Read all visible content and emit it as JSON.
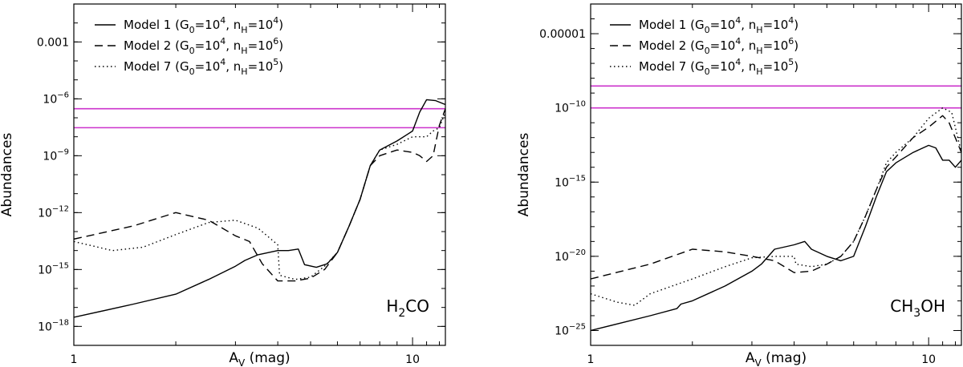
{
  "chart_data": [
    {
      "type": "line",
      "species": "H2CO",
      "label_base": "H",
      "label_sub": "2",
      "label_rest": "CO",
      "xlabel": "A",
      "xlabel_sub": "V",
      "xlabel_rest": " (mag)",
      "ylabel": "Abundances",
      "xscale": "log",
      "yscale": "log",
      "xlim": [
        1,
        12.5
      ],
      "ylim": [
        1e-19,
        0.1
      ],
      "yticks": [
        {
          "value": 0.001,
          "label": "0.001",
          "exp": ""
        },
        {
          "value": 1e-06,
          "label": "10",
          "exp": "−6"
        },
        {
          "value": 1e-09,
          "label": "10",
          "exp": "−9"
        },
        {
          "value": 1e-12,
          "label": "10",
          "exp": "−12"
        },
        {
          "value": 1e-15,
          "label": "10",
          "exp": "−15"
        },
        {
          "value": 1e-18,
          "label": "10",
          "exp": "−18"
        }
      ],
      "xticks": [
        {
          "value": 1,
          "label": "1"
        },
        {
          "value": 10,
          "label": "10"
        }
      ],
      "observed_abundance_lines": [
        3e-07,
        3e-08
      ],
      "observed_line_color": "#cc33cc",
      "series": [
        {
          "name": "Model 1",
          "style": "solid",
          "legend": {
            "model": "Model 1",
            "G0": "4",
            "nH": "4"
          },
          "points": [
            [
              1,
              3e-18
            ],
            [
              1.5,
              1.5e-17
            ],
            [
              2,
              5e-17
            ],
            [
              2.5,
              3e-16
            ],
            [
              3,
              1.5e-15
            ],
            [
              3.2,
              3e-15
            ],
            [
              3.5,
              6e-15
            ],
            [
              4,
              1e-14
            ],
            [
              4.3,
              1e-14
            ],
            [
              4.6,
              1.2e-14
            ],
            [
              4.8,
              1.8e-15
            ],
            [
              5.2,
              1.3e-15
            ],
            [
              5.6,
              2e-15
            ],
            [
              6,
              8e-15
            ],
            [
              6.5,
              2e-13
            ],
            [
              7,
              5e-12
            ],
            [
              7.5,
              3e-10
            ],
            [
              8,
              2e-09
            ],
            [
              9,
              6e-09
            ],
            [
              10,
              2e-08
            ],
            [
              10.5,
              2e-07
            ],
            [
              11,
              9e-07
            ],
            [
              11.7,
              8e-07
            ],
            [
              12.5,
              5e-07
            ]
          ]
        },
        {
          "name": "Model 2",
          "style": "dashed",
          "legend": {
            "model": "Model 2",
            "G0": "4",
            "nH": "6"
          },
          "points": [
            [
              1,
              4e-14
            ],
            [
              1.5,
              2e-13
            ],
            [
              2,
              1e-12
            ],
            [
              2.5,
              4e-13
            ],
            [
              3,
              6e-14
            ],
            [
              3.3,
              3e-14
            ],
            [
              3.6,
              2e-15
            ],
            [
              4,
              2.5e-16
            ],
            [
              4.5,
              2.5e-16
            ],
            [
              5,
              3.5e-16
            ],
            [
              5.5,
              1e-15
            ],
            [
              6,
              8e-15
            ],
            [
              6.5,
              2e-13
            ],
            [
              7,
              5e-12
            ],
            [
              7.5,
              3e-10
            ],
            [
              8,
              1e-09
            ],
            [
              9,
              2e-09
            ],
            [
              10,
              1.5e-09
            ],
            [
              10.5,
              1e-09
            ],
            [
              11,
              5e-10
            ],
            [
              11.5,
              1e-09
            ],
            [
              12,
              4e-08
            ],
            [
              12.5,
              3e-07
            ]
          ]
        },
        {
          "name": "Model 7",
          "style": "dotted",
          "legend": {
            "model": "Model 7",
            "G0": "4",
            "nH": "5"
          },
          "points": [
            [
              1,
              3e-14
            ],
            [
              1.3,
              1e-14
            ],
            [
              1.6,
              1.5e-14
            ],
            [
              2,
              7e-14
            ],
            [
              2.5,
              3e-13
            ],
            [
              3,
              4e-13
            ],
            [
              3.5,
              1.5e-13
            ],
            [
              4,
              2e-14
            ],
            [
              4.05,
              5e-16
            ],
            [
              4.5,
              3e-16
            ],
            [
              5,
              4e-16
            ],
            [
              5.5,
              1.5e-15
            ],
            [
              6,
              8e-15
            ],
            [
              6.5,
              2e-13
            ],
            [
              7,
              5e-12
            ],
            [
              7.5,
              3e-10
            ],
            [
              8,
              2e-09
            ],
            [
              9,
              4e-09
            ],
            [
              10,
              1e-08
            ],
            [
              11,
              1e-08
            ],
            [
              11.5,
              2e-08
            ],
            [
              12,
              3e-08
            ],
            [
              12.5,
              2e-07
            ]
          ]
        }
      ]
    },
    {
      "type": "line",
      "species": "CH3OH",
      "label_base": "CH",
      "label_sub": "3",
      "label_rest": "OH",
      "xlabel": "A",
      "xlabel_sub": "V",
      "xlabel_rest": " (mag)",
      "ylabel": "Abundances",
      "xscale": "log",
      "yscale": "log",
      "xlim": [
        1,
        12.5
      ],
      "ylim": [
        1e-26,
        0.001
      ],
      "yticks": [
        {
          "value": 1e-05,
          "label": "0.00001",
          "exp": ""
        },
        {
          "value": 1e-10,
          "label": "10",
          "exp": "−10"
        },
        {
          "value": 1e-15,
          "label": "10",
          "exp": "−15"
        },
        {
          "value": 1e-20,
          "label": "10",
          "exp": "−20"
        },
        {
          "value": 1e-25,
          "label": "10",
          "exp": "−25"
        }
      ],
      "xticks": [
        {
          "value": 1,
          "label": "1"
        },
        {
          "value": 10,
          "label": "10"
        }
      ],
      "observed_abundance_lines": [
        3e-09,
        1e-10
      ],
      "observed_line_color": "#cc33cc",
      "series": [
        {
          "name": "Model 1",
          "style": "solid",
          "legend": {
            "model": "Model 1",
            "G0": "4",
            "nH": "4"
          },
          "points": [
            [
              1,
              1e-25
            ],
            [
              1.5,
              1e-24
            ],
            [
              1.8,
              3e-24
            ],
            [
              1.85,
              6e-24
            ],
            [
              2,
              1e-23
            ],
            [
              2.5,
              1e-22
            ],
            [
              3,
              1e-21
            ],
            [
              3.2,
              3e-21
            ],
            [
              3.5,
              3e-20
            ],
            [
              4,
              6e-20
            ],
            [
              4.3,
              1e-19
            ],
            [
              4.5,
              3e-20
            ],
            [
              5,
              1e-20
            ],
            [
              5.5,
              5e-21
            ],
            [
              6,
              1e-20
            ],
            [
              6.5,
              1e-18
            ],
            [
              7,
              1e-16
            ],
            [
              7.5,
              5e-15
            ],
            [
              8,
              2e-14
            ],
            [
              9,
              1e-13
            ],
            [
              10,
              3e-13
            ],
            [
              10.5,
              2e-13
            ],
            [
              11,
              3e-14
            ],
            [
              11.5,
              3e-14
            ],
            [
              12,
              1e-14
            ],
            [
              12.5,
              3e-14
            ]
          ]
        },
        {
          "name": "Model 2",
          "style": "dashed",
          "legend": {
            "model": "Model 2",
            "G0": "4",
            "nH": "6"
          },
          "points": [
            [
              1,
              3e-22
            ],
            [
              1.5,
              3e-21
            ],
            [
              2,
              3e-20
            ],
            [
              2.5,
              2e-20
            ],
            [
              3,
              1e-20
            ],
            [
              3.5,
              5e-21
            ],
            [
              4,
              8e-22
            ],
            [
              4.5,
              1e-21
            ],
            [
              5,
              3e-21
            ],
            [
              5.5,
              1e-20
            ],
            [
              6,
              1e-19
            ],
            [
              6.5,
              5e-18
            ],
            [
              7,
              3e-16
            ],
            [
              7.5,
              1e-14
            ],
            [
              8,
              5e-14
            ],
            [
              9,
              1e-12
            ],
            [
              10,
              5e-12
            ],
            [
              11,
              3e-11
            ],
            [
              11.5,
              1e-11
            ],
            [
              12.5,
              1e-13
            ]
          ]
        },
        {
          "name": "Model 7",
          "style": "dotted",
          "legend": {
            "model": "Model 7",
            "G0": "4",
            "nH": "5"
          },
          "points": [
            [
              1,
              3e-23
            ],
            [
              1.2,
              8e-24
            ],
            [
              1.35,
              5e-24
            ],
            [
              1.5,
              3e-23
            ],
            [
              2,
              3e-22
            ],
            [
              2.5,
              2e-21
            ],
            [
              3,
              8e-21
            ],
            [
              3.5,
              1e-20
            ],
            [
              4,
              1e-20
            ],
            [
              4.05,
              3e-21
            ],
            [
              4.5,
              2e-21
            ],
            [
              5,
              3e-21
            ],
            [
              5.5,
              1e-20
            ],
            [
              6,
              1e-19
            ],
            [
              6.5,
              5e-18
            ],
            [
              7,
              3e-16
            ],
            [
              7.5,
              2e-14
            ],
            [
              8,
              1e-13
            ],
            [
              9,
              1e-12
            ],
            [
              10,
              2e-11
            ],
            [
              11,
              1e-10
            ],
            [
              11.7,
              5e-11
            ],
            [
              12.5,
              1e-13
            ]
          ]
        }
      ]
    }
  ]
}
